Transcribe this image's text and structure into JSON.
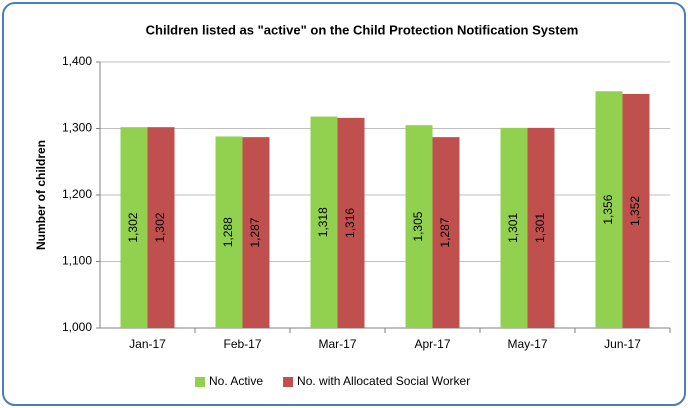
{
  "chart_data": {
    "type": "bar",
    "title": "Children listed as \"active\" on the Child Protection Notification System",
    "y_label": "Number of children",
    "categories": [
      "Jan-17",
      "Feb-17",
      "Mar-17",
      "Apr-17",
      "May-17",
      "Jun-17"
    ],
    "series": [
      {
        "name": "No. Active",
        "color": "#92d050",
        "values": [
          1302,
          1288,
          1318,
          1305,
          1301,
          1356
        ],
        "value_labels": [
          "1,302",
          "1,288",
          "1,318",
          "1,305",
          "1,301",
          "1,356"
        ]
      },
      {
        "name": "No. with Allocated Social Worker",
        "color": "#c0504d",
        "values": [
          1302,
          1287,
          1316,
          1287,
          1301,
          1352
        ],
        "value_labels": [
          "1,302",
          "1,287",
          "1,316",
          "1,287",
          "1,301",
          "1,352"
        ]
      }
    ],
    "ylim": [
      1000,
      1400
    ],
    "yticks": [
      {
        "value": 1000,
        "label": "1,000"
      },
      {
        "value": 1100,
        "label": "1,100"
      },
      {
        "value": 1200,
        "label": "1,200"
      },
      {
        "value": 1300,
        "label": "1,300"
      },
      {
        "value": 1400,
        "label": "1,400"
      }
    ],
    "grid": true,
    "legend": "bottom"
  }
}
